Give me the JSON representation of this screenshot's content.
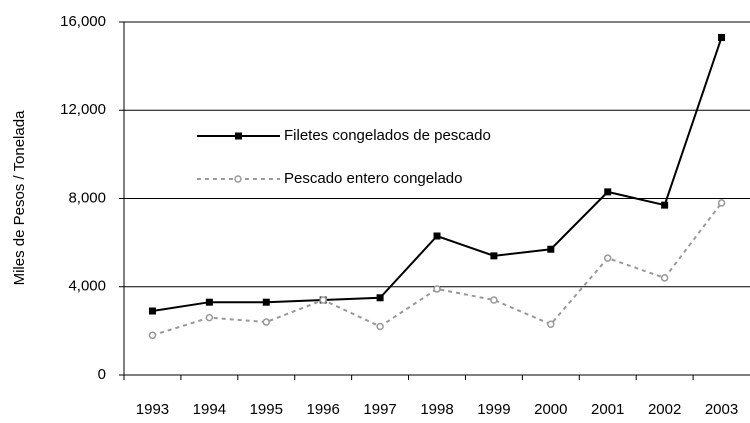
{
  "chart_data": {
    "type": "line",
    "y_label": "Miles de Pesos / Tonelada",
    "categories": [
      "1993",
      "1994",
      "1995",
      "1996",
      "1997",
      "1998",
      "1999",
      "2000",
      "2001",
      "2002",
      "2003"
    ],
    "series": [
      {
        "name": "Filetes congelados de pescado",
        "color": "#000000",
        "style": "solid",
        "marker": "square",
        "values": [
          2900,
          3300,
          3300,
          3400,
          3500,
          6300,
          5400,
          5700,
          8300,
          7700,
          15300
        ]
      },
      {
        "name": "Pescado entero congelado",
        "color": "#999999",
        "style": "dashed",
        "marker": "circle",
        "values": [
          1800,
          2600,
          2400,
          3400,
          2200,
          3900,
          3400,
          2300,
          5300,
          4400,
          7800
        ]
      }
    ],
    "ylim": [
      0,
      16000
    ],
    "yticks": [
      0,
      {
        "value": 4000,
        "label": "4,000"
      },
      {
        "value": 8000,
        "label": "8,000"
      },
      {
        "value": 12000,
        "label": "12,000"
      },
      {
        "value": 16000,
        "label": "16,000"
      }
    ],
    "grid": true
  }
}
